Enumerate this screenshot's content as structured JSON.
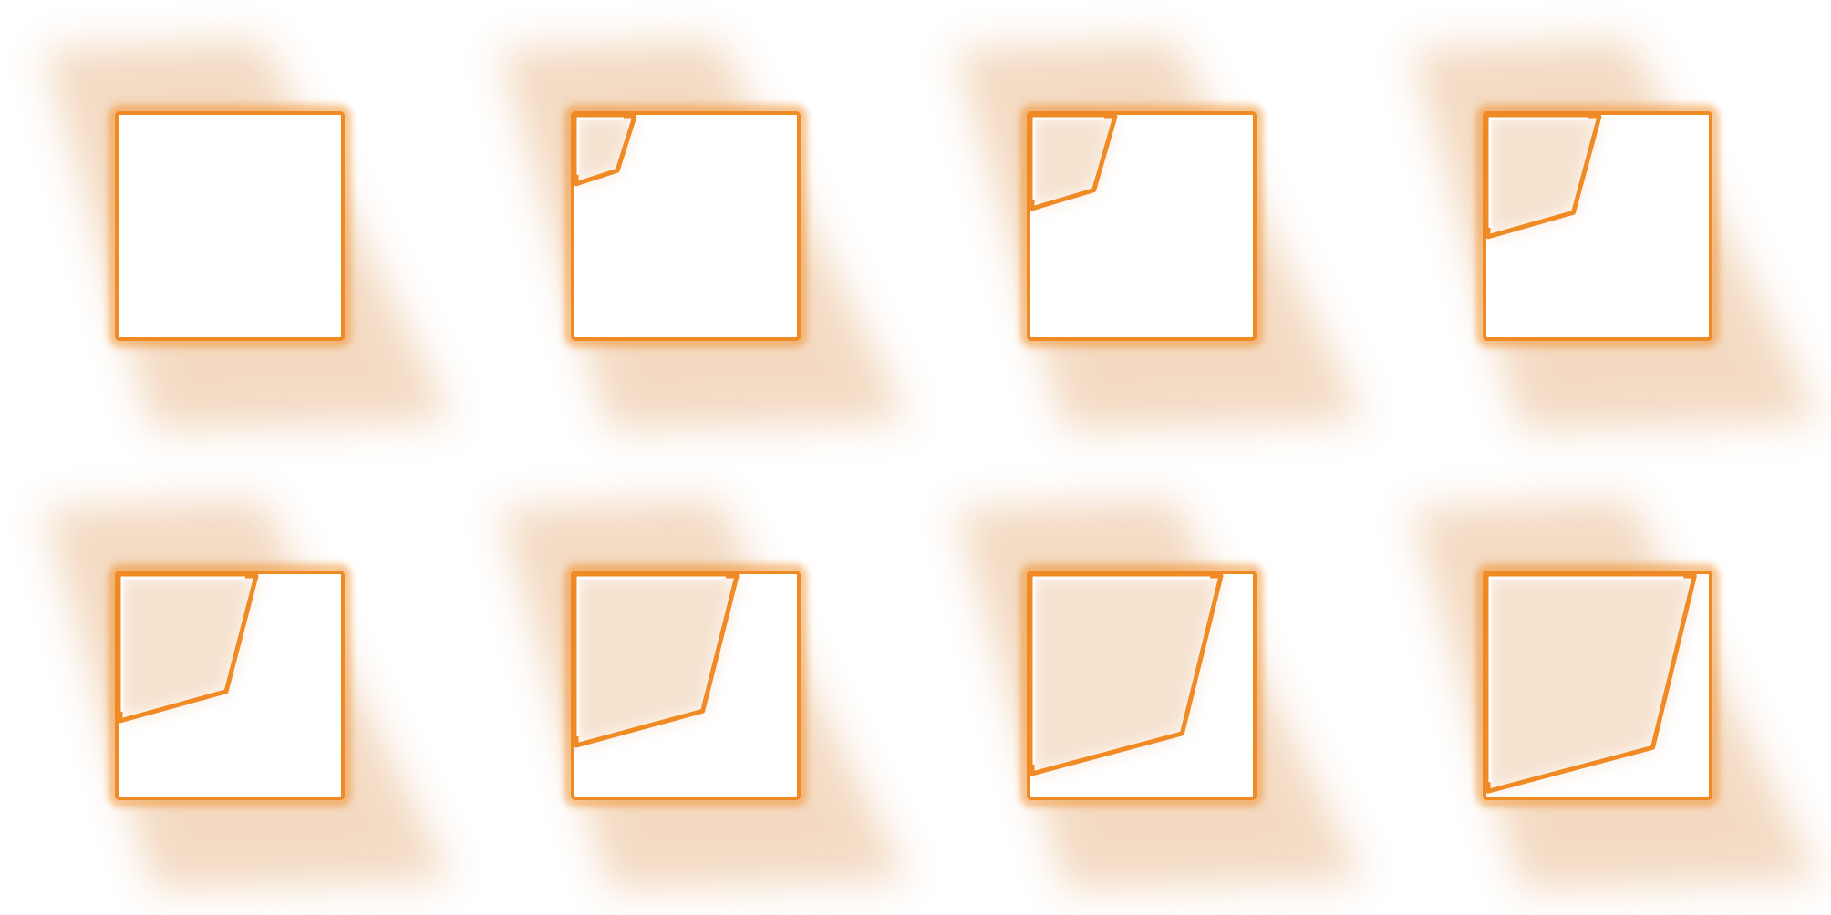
{
  "image": {
    "description_free": true,
    "background_color": "#ffffff",
    "accent_color": "#f08a24",
    "shadow_color": "#d57a26"
  },
  "grid": {
    "rows": 2,
    "columns": 4,
    "tiles": [
      {
        "id": "tile-1",
        "peel_progress": 0.0
      },
      {
        "id": "tile-2",
        "peel_progress": 0.12
      },
      {
        "id": "tile-3",
        "peel_progress": 0.26
      },
      {
        "id": "tile-4",
        "peel_progress": 0.42
      },
      {
        "id": "tile-5",
        "peel_progress": 0.56
      },
      {
        "id": "tile-6",
        "peel_progress": 0.7
      },
      {
        "id": "tile-7",
        "peel_progress": 0.86
      },
      {
        "id": "tile-8",
        "peel_progress": 0.96
      }
    ]
  }
}
